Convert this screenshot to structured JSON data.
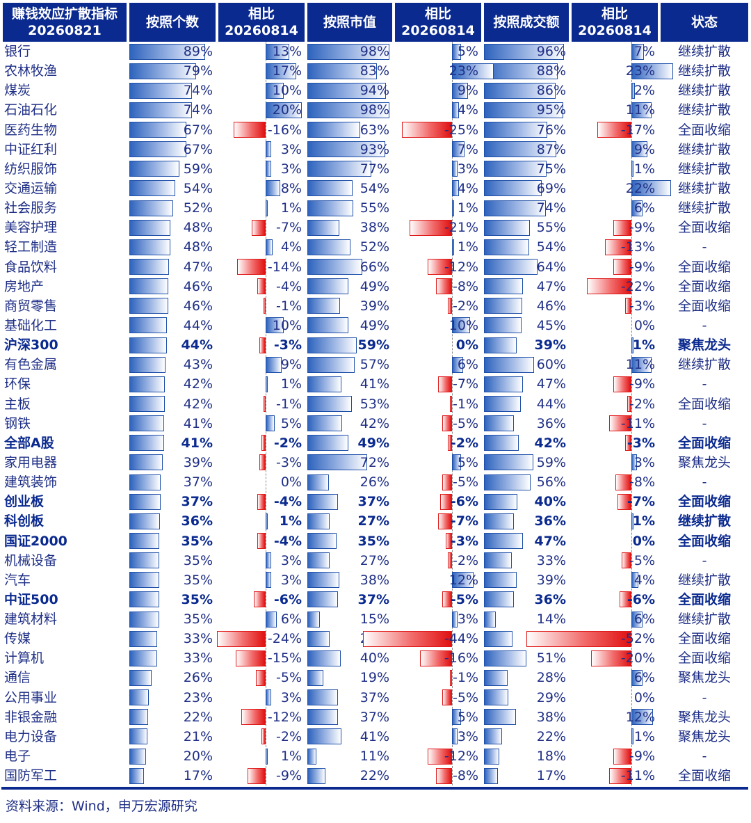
{
  "chart_data": {
    "type": "table",
    "header": {
      "name": "赚钱效应扩散指标",
      "name_date": "20260821",
      "count": "按照个数",
      "count_change": "相比",
      "count_change_date": "20260814",
      "mcap": "按照市值",
      "mcap_change": "相比",
      "mcap_change_date": "20260814",
      "turnover": "按照成交额",
      "turnover_change": "相比",
      "turnover_change_date": "20260814",
      "status": "状态"
    },
    "rows": [
      {
        "name": "银行",
        "bold": false,
        "count": 89,
        "count_chg": 13,
        "mcap": 98,
        "mcap_chg": 5,
        "turnover": 96,
        "turnover_chg": 7,
        "status": "继续扩散"
      },
      {
        "name": "农林牧渔",
        "bold": false,
        "count": 79,
        "count_chg": 17,
        "mcap": 83,
        "mcap_chg": 23,
        "turnover": 88,
        "turnover_chg": 23,
        "status": "继续扩散"
      },
      {
        "name": "煤炭",
        "bold": false,
        "count": 74,
        "count_chg": 10,
        "mcap": 94,
        "mcap_chg": 9,
        "turnover": 86,
        "turnover_chg": 2,
        "status": "继续扩散"
      },
      {
        "name": "石油石化",
        "bold": false,
        "count": 74,
        "count_chg": 20,
        "mcap": 98,
        "mcap_chg": 4,
        "turnover": 95,
        "turnover_chg": 11,
        "status": "继续扩散"
      },
      {
        "name": "医药生物",
        "bold": false,
        "count": 67,
        "count_chg": -16,
        "mcap": 63,
        "mcap_chg": -25,
        "turnover": 76,
        "turnover_chg": -17,
        "status": "全面收缩"
      },
      {
        "name": "中证红利",
        "bold": false,
        "count": 67,
        "count_chg": 3,
        "mcap": 93,
        "mcap_chg": 7,
        "turnover": 87,
        "turnover_chg": 9,
        "status": "继续扩散"
      },
      {
        "name": "纺织服饰",
        "bold": false,
        "count": 59,
        "count_chg": 3,
        "mcap": 77,
        "mcap_chg": 3,
        "turnover": 75,
        "turnover_chg": 1,
        "status": "继续扩散"
      },
      {
        "name": "交通运输",
        "bold": false,
        "count": 54,
        "count_chg": 8,
        "mcap": 54,
        "mcap_chg": 4,
        "turnover": 69,
        "turnover_chg": 22,
        "status": "继续扩散"
      },
      {
        "name": "社会服务",
        "bold": false,
        "count": 52,
        "count_chg": 1,
        "mcap": 55,
        "mcap_chg": 1,
        "turnover": 74,
        "turnover_chg": 6,
        "status": "继续扩散"
      },
      {
        "name": "美容护理",
        "bold": false,
        "count": 48,
        "count_chg": -7,
        "mcap": 38,
        "mcap_chg": -21,
        "turnover": 55,
        "turnover_chg": -9,
        "status": "全面收缩"
      },
      {
        "name": "轻工制造",
        "bold": false,
        "count": 48,
        "count_chg": 4,
        "mcap": 52,
        "mcap_chg": 1,
        "turnover": 54,
        "turnover_chg": -13,
        "status": "-"
      },
      {
        "name": "食品饮料",
        "bold": false,
        "count": 47,
        "count_chg": -14,
        "mcap": 66,
        "mcap_chg": -12,
        "turnover": 64,
        "turnover_chg": -9,
        "status": "全面收缩"
      },
      {
        "name": "房地产",
        "bold": false,
        "count": 46,
        "count_chg": -4,
        "mcap": 49,
        "mcap_chg": -8,
        "turnover": 47,
        "turnover_chg": -22,
        "status": "全面收缩"
      },
      {
        "name": "商贸零售",
        "bold": false,
        "count": 46,
        "count_chg": -1,
        "mcap": 39,
        "mcap_chg": -2,
        "turnover": 46,
        "turnover_chg": -3,
        "status": "全面收缩"
      },
      {
        "name": "基础化工",
        "bold": false,
        "count": 44,
        "count_chg": 10,
        "mcap": 49,
        "mcap_chg": 10,
        "turnover": 45,
        "turnover_chg": 0,
        "status": "-"
      },
      {
        "name": "沪深300",
        "bold": true,
        "count": 44,
        "count_chg": -3,
        "mcap": 59,
        "mcap_chg": 0,
        "turnover": 39,
        "turnover_chg": 1,
        "status": "聚焦龙头"
      },
      {
        "name": "有色金属",
        "bold": false,
        "count": 43,
        "count_chg": 9,
        "mcap": 57,
        "mcap_chg": 6,
        "turnover": 60,
        "turnover_chg": 11,
        "status": "继续扩散"
      },
      {
        "name": "环保",
        "bold": false,
        "count": 42,
        "count_chg": 1,
        "mcap": 41,
        "mcap_chg": -7,
        "turnover": 47,
        "turnover_chg": -9,
        "status": "-"
      },
      {
        "name": "主板",
        "bold": false,
        "count": 42,
        "count_chg": -1,
        "mcap": 53,
        "mcap_chg": -1,
        "turnover": 44,
        "turnover_chg": -2,
        "status": "全面收缩"
      },
      {
        "name": "钢铁",
        "bold": false,
        "count": 41,
        "count_chg": 5,
        "mcap": 42,
        "mcap_chg": -5,
        "turnover": 36,
        "turnover_chg": -11,
        "status": "-"
      },
      {
        "name": "全部A股",
        "bold": true,
        "count": 41,
        "count_chg": -2,
        "mcap": 49,
        "mcap_chg": -2,
        "turnover": 42,
        "turnover_chg": -3,
        "status": "全面收缩"
      },
      {
        "name": "家用电器",
        "bold": false,
        "count": 39,
        "count_chg": -3,
        "mcap": 72,
        "mcap_chg": 5,
        "turnover": 59,
        "turnover_chg": 3,
        "status": "聚焦龙头"
      },
      {
        "name": "建筑装饰",
        "bold": false,
        "count": 37,
        "count_chg": 0,
        "mcap": 26,
        "mcap_chg": -5,
        "turnover": 56,
        "turnover_chg": -8,
        "status": "-"
      },
      {
        "name": "创业板",
        "bold": true,
        "count": 37,
        "count_chg": -4,
        "mcap": 37,
        "mcap_chg": -6,
        "turnover": 40,
        "turnover_chg": -7,
        "status": "全面收缩"
      },
      {
        "name": "科创板",
        "bold": true,
        "count": 36,
        "count_chg": 1,
        "mcap": 27,
        "mcap_chg": -7,
        "turnover": 36,
        "turnover_chg": 1,
        "status": "继续扩散"
      },
      {
        "name": "国证2000",
        "bold": true,
        "count": 35,
        "count_chg": -4,
        "mcap": 35,
        "mcap_chg": -3,
        "turnover": 47,
        "turnover_chg": 0,
        "status": "全面收缩"
      },
      {
        "name": "机械设备",
        "bold": false,
        "count": 35,
        "count_chg": 3,
        "mcap": 27,
        "mcap_chg": -2,
        "turnover": 33,
        "turnover_chg": -5,
        "status": "-"
      },
      {
        "name": "汽车",
        "bold": false,
        "count": 35,
        "count_chg": 3,
        "mcap": 38,
        "mcap_chg": 12,
        "turnover": 39,
        "turnover_chg": 4,
        "status": "继续扩散"
      },
      {
        "name": "中证500",
        "bold": true,
        "count": 35,
        "count_chg": -6,
        "mcap": 37,
        "mcap_chg": -5,
        "turnover": 36,
        "turnover_chg": -6,
        "status": "全面收缩"
      },
      {
        "name": "建筑材料",
        "bold": false,
        "count": 35,
        "count_chg": 6,
        "mcap": 15,
        "mcap_chg": 3,
        "turnover": 14,
        "turnover_chg": 6,
        "status": "继续扩散"
      },
      {
        "name": "传媒",
        "bold": false,
        "count": 33,
        "count_chg": -24,
        "mcap": 27,
        "mcap_chg": -44,
        "turnover": 34,
        "turnover_chg": -52,
        "status": "全面收缩"
      },
      {
        "name": "计算机",
        "bold": false,
        "count": 33,
        "count_chg": -15,
        "mcap": 40,
        "mcap_chg": -16,
        "turnover": 51,
        "turnover_chg": -20,
        "status": "全面收缩"
      },
      {
        "name": "通信",
        "bold": false,
        "count": 26,
        "count_chg": -5,
        "mcap": 19,
        "mcap_chg": -1,
        "turnover": 28,
        "turnover_chg": 6,
        "status": "聚焦龙头"
      },
      {
        "name": "公用事业",
        "bold": false,
        "count": 23,
        "count_chg": 3,
        "mcap": 37,
        "mcap_chg": -5,
        "turnover": 29,
        "turnover_chg": 0,
        "status": "-"
      },
      {
        "name": "非银金融",
        "bold": false,
        "count": 22,
        "count_chg": -12,
        "mcap": 37,
        "mcap_chg": 5,
        "turnover": 38,
        "turnover_chg": 12,
        "status": "聚焦龙头"
      },
      {
        "name": "电力设备",
        "bold": false,
        "count": 21,
        "count_chg": -2,
        "mcap": 41,
        "mcap_chg": 3,
        "turnover": 22,
        "turnover_chg": 1,
        "status": "聚焦龙头"
      },
      {
        "name": "电子",
        "bold": false,
        "count": 20,
        "count_chg": 1,
        "mcap": 11,
        "mcap_chg": -12,
        "turnover": 18,
        "turnover_chg": -9,
        "status": "-"
      },
      {
        "name": "国防军工",
        "bold": false,
        "count": 17,
        "count_chg": -9,
        "mcap": 22,
        "mcap_chg": -8,
        "turnover": 17,
        "turnover_chg": -11,
        "status": "全面收缩"
      }
    ],
    "unit": "%"
  },
  "source": "资料来源：Wind，申万宏源研究",
  "colors": {
    "header_bg": "#0b2a8f",
    "text": "#1f2f86",
    "positive_bar": "#2e63bd",
    "negative_bar": "#e01010"
  }
}
